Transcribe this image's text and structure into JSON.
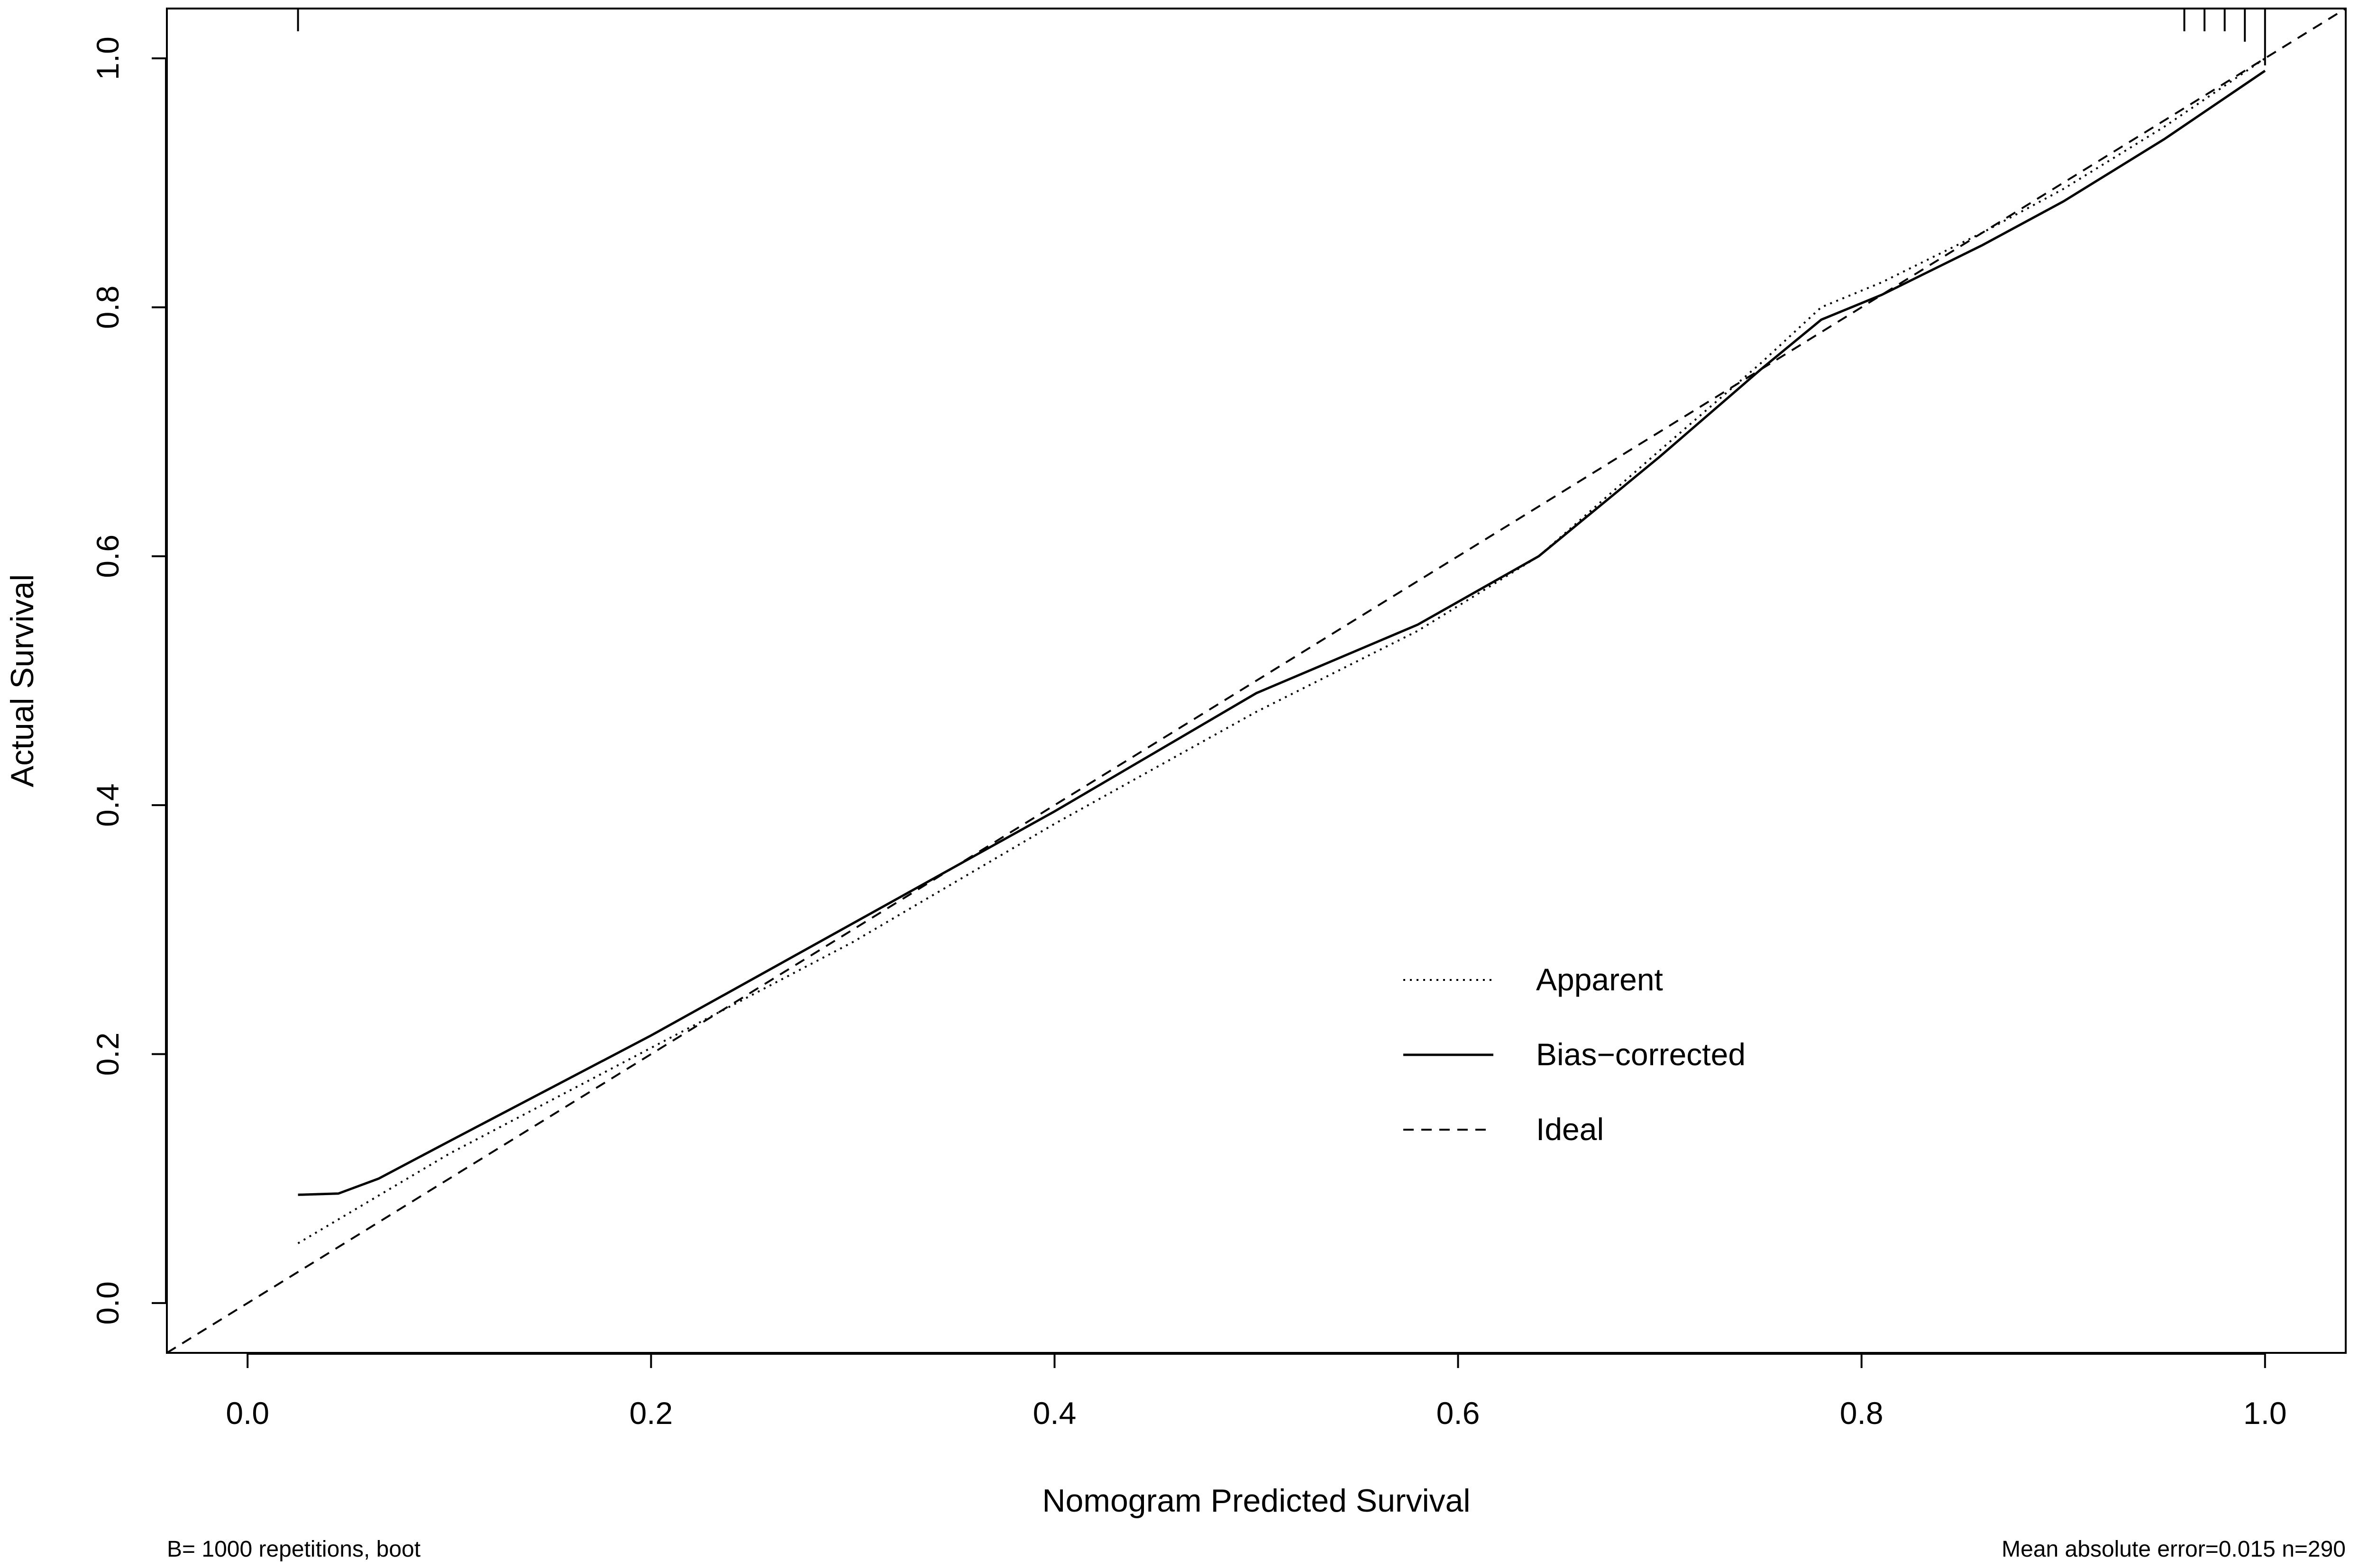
{
  "chart_data": {
    "type": "line",
    "xlabel": "Nomogram Predicted Survival",
    "ylabel": "Actual Survival",
    "xlim": [
      -0.04,
      1.04
    ],
    "ylim": [
      -0.04,
      1.04
    ],
    "x_ticks": [
      0.0,
      0.2,
      0.4,
      0.6,
      0.8,
      1.0
    ],
    "y_ticks": [
      0.0,
      0.2,
      0.4,
      0.6,
      0.8,
      1.0
    ],
    "x_tick_labels": [
      "0.0",
      "0.2",
      "0.4",
      "0.6",
      "0.8",
      "1.0"
    ],
    "y_tick_labels": [
      "0.0",
      "0.2",
      "0.4",
      "0.6",
      "0.8",
      "1.0"
    ],
    "grid": false,
    "legend_position": "bottom-right",
    "series": [
      {
        "name": "Apparent",
        "style": "dotted",
        "color": "#000000",
        "x": [
          0.025,
          0.1,
          0.2,
          0.3,
          0.4,
          0.5,
          0.58,
          0.64,
          0.7,
          0.75,
          0.78,
          0.81,
          0.86,
          0.9,
          0.95,
          1.0
        ],
        "y": [
          0.048,
          0.12,
          0.205,
          0.29,
          0.385,
          0.475,
          0.54,
          0.6,
          0.685,
          0.755,
          0.8,
          0.82,
          0.86,
          0.895,
          0.945,
          1.0
        ]
      },
      {
        "name": "Bias−corrected",
        "style": "solid",
        "color": "#000000",
        "x": [
          0.025,
          0.045,
          0.065,
          0.1,
          0.2,
          0.3,
          0.4,
          0.5,
          0.58,
          0.64,
          0.7,
          0.75,
          0.78,
          0.81,
          0.86,
          0.9,
          0.95,
          1.0
        ],
        "y": [
          0.087,
          0.088,
          0.1,
          0.13,
          0.215,
          0.305,
          0.395,
          0.49,
          0.545,
          0.6,
          0.68,
          0.75,
          0.79,
          0.81,
          0.85,
          0.885,
          0.935,
          0.99
        ]
      },
      {
        "name": "Ideal",
        "style": "dashed",
        "color": "#000000",
        "x": [
          -0.04,
          1.04
        ],
        "y": [
          -0.04,
          1.04
        ]
      }
    ],
    "rug_x": [
      0.025,
      0.96,
      0.97,
      0.98,
      0.99,
      1.0
    ],
    "footnote_left": "B= 1000 repetitions, boot",
    "footnote_right": "Mean absolute error=0.015 n=290"
  }
}
